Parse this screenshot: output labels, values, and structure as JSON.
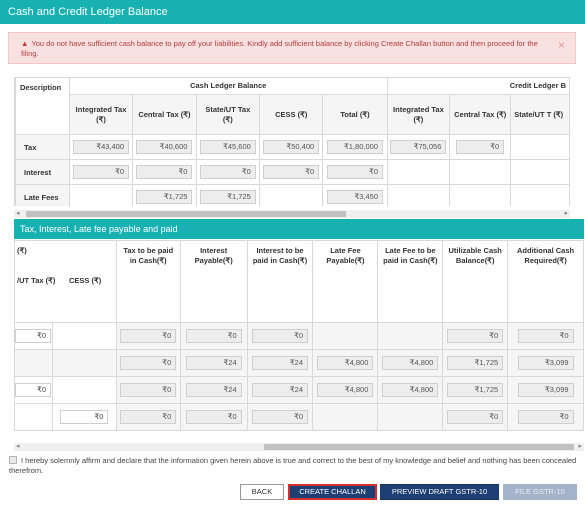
{
  "header": {
    "title": "Cash and Credit Ledger Balance"
  },
  "alert": {
    "icon": "warning-icon",
    "message": "You do not have sufficient cash balance to pay off your liabilities. Kindly add sufficient balance by clicking Create Challan button and then proceed for the filing.",
    "close": "×"
  },
  "ledger": {
    "description_header": "Description",
    "cash_group": "Cash Ledger Balance",
    "credit_group": "Credit Ledger B",
    "cash_columns": [
      "Integrated Tax (₹)",
      "Central Tax (₹)",
      "State/UT Tax (₹)",
      "CESS (₹)",
      "Total (₹)"
    ],
    "credit_columns": [
      "Integrated Tax (₹)",
      "Central Tax (₹)",
      "State/UT T (₹)"
    ],
    "rows": [
      {
        "label": "Tax",
        "cash": [
          "₹43,400",
          "₹40,600",
          "₹45,600",
          "₹50,400",
          "₹1,80,000"
        ],
        "credit": [
          "₹75,056",
          "₹0",
          ""
        ]
      },
      {
        "label": "Interest",
        "cash": [
          "₹0",
          "₹0",
          "₹0",
          "₹0",
          "₹0"
        ],
        "credit": [
          "",
          "",
          ""
        ]
      },
      {
        "label": "Late Fees",
        "cash": [
          "",
          "₹1,725",
          "₹1,725",
          "",
          "₹3,450"
        ],
        "credit": [
          "",
          "",
          ""
        ]
      }
    ]
  },
  "payable": {
    "title": "Tax, Interest, Late fee payable and paid",
    "columns": {
      "rupee": "(₹)",
      "state_ut": "/UT Tax (₹)",
      "cess": "CESS (₹)",
      "tax_cash": "Tax to be paid in Cash(₹)",
      "interest_payable": "Interest Payable(₹)",
      "interest_cash": "Interest to be paid in Cash(₹)",
      "latefee_payable": "Late Fee Payable(₹)",
      "latefee_cash": "Late Fee to be paid in Cash(₹)",
      "utilizable": "Utilizable Cash Balance(₹)",
      "additional": "Additional Cash Required(₹)"
    },
    "rows": [
      {
        "state": "₹0",
        "cess": "",
        "tax_cash": "₹0",
        "int_pay": "₹0",
        "int_cash": "₹0",
        "lf_pay": "",
        "lf_cash": "",
        "util": "₹0",
        "add": "₹0"
      },
      {
        "state": "",
        "cess": "",
        "tax_cash": "₹0",
        "int_pay": "₹24",
        "int_cash": "₹24",
        "lf_pay": "₹4,800",
        "lf_cash": "₹4,800",
        "util": "₹1,725",
        "add": "₹3,099"
      },
      {
        "state": "₹0",
        "cess": "",
        "tax_cash": "₹0",
        "int_pay": "₹24",
        "int_cash": "₹24",
        "lf_pay": "₹4,800",
        "lf_cash": "₹4,800",
        "util": "₹1,725",
        "add": "₹3,099"
      },
      {
        "state": "",
        "cess": "₹0",
        "tax_cash": "₹0",
        "int_pay": "₹0",
        "int_cash": "₹0",
        "lf_pay": "",
        "lf_cash": "",
        "util": "₹0",
        "add": "₹0"
      }
    ]
  },
  "declaration": "I hereby solemnly affirm and declare that the information given herein above is true and correct to the best of my knowledge and belief and nothing has been concealed therefrom.",
  "buttons": {
    "back": "BACK",
    "create_challan": "CREATE CHALLAN",
    "preview": "PREVIEW DRAFT GSTR-10",
    "file": "FILE GSTR-10"
  }
}
